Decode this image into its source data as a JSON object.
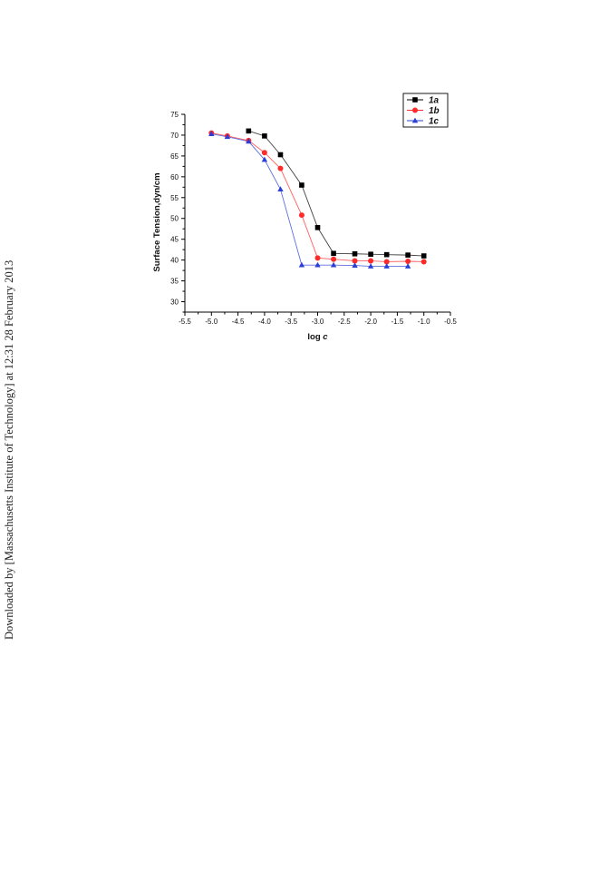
{
  "side_note": "Downloaded by [Massachusetts Institute of Technology] at 12:31 28 February 2013",
  "chart_data": {
    "type": "line",
    "title": "",
    "xlabel": "log c",
    "ylabel": "Surface Tension,dyn/cm",
    "xlim": [
      -5.5,
      -0.5
    ],
    "ylim": [
      27.5,
      75
    ],
    "x_ticks": [
      -5.5,
      -5.0,
      -4.5,
      -4.0,
      -3.5,
      -3.0,
      -2.5,
      -2.0,
      -1.5,
      -1.0,
      -0.5
    ],
    "x_tick_labels": [
      "-5.5",
      "-5.0",
      "-4.5",
      "-4.0",
      "-3.5",
      "-3.0",
      "-2.5",
      "-2.0",
      "-1.5",
      "-1.0",
      "-0.5"
    ],
    "y_ticks": [
      30,
      35,
      40,
      45,
      50,
      55,
      60,
      65,
      70,
      75
    ],
    "y_tick_labels": [
      "30",
      "35",
      "40",
      "45",
      "50",
      "55",
      "60",
      "65",
      "70",
      "75"
    ],
    "grid": false,
    "legend_position": "top-right",
    "series": [
      {
        "name": "1a",
        "color": "#000000",
        "marker": "square",
        "x": [
          -4.3,
          -4.0,
          -3.7,
          -3.3,
          -3.0,
          -2.7,
          -2.3,
          -2.0,
          -1.7,
          -1.3,
          -1.0
        ],
        "y": [
          71.0,
          69.8,
          65.3,
          58.0,
          47.8,
          41.6,
          41.5,
          41.4,
          41.3,
          41.2,
          41.0
        ]
      },
      {
        "name": "1b",
        "color": "#ff2a2a",
        "marker": "circle",
        "x": [
          -5.0,
          -4.7,
          -4.3,
          -4.0,
          -3.7,
          -3.3,
          -3.0,
          -2.7,
          -2.3,
          -2.0,
          -1.7,
          -1.3,
          -1.0
        ],
        "y": [
          70.5,
          69.8,
          68.7,
          65.8,
          62.0,
          50.8,
          40.5,
          40.2,
          39.8,
          39.8,
          39.6,
          39.7,
          39.6
        ]
      },
      {
        "name": "1c",
        "color": "#2a3fd6",
        "marker": "triangle",
        "x": [
          -5.0,
          -4.7,
          -4.3,
          -4.0,
          -3.7,
          -3.3,
          -3.0,
          -2.7,
          -2.3,
          -2.0,
          -1.7,
          -1.3
        ],
        "y": [
          70.3,
          69.6,
          68.5,
          64.1,
          57.0,
          38.8,
          38.8,
          38.8,
          38.7,
          38.5,
          38.5,
          38.5
        ]
      }
    ]
  }
}
